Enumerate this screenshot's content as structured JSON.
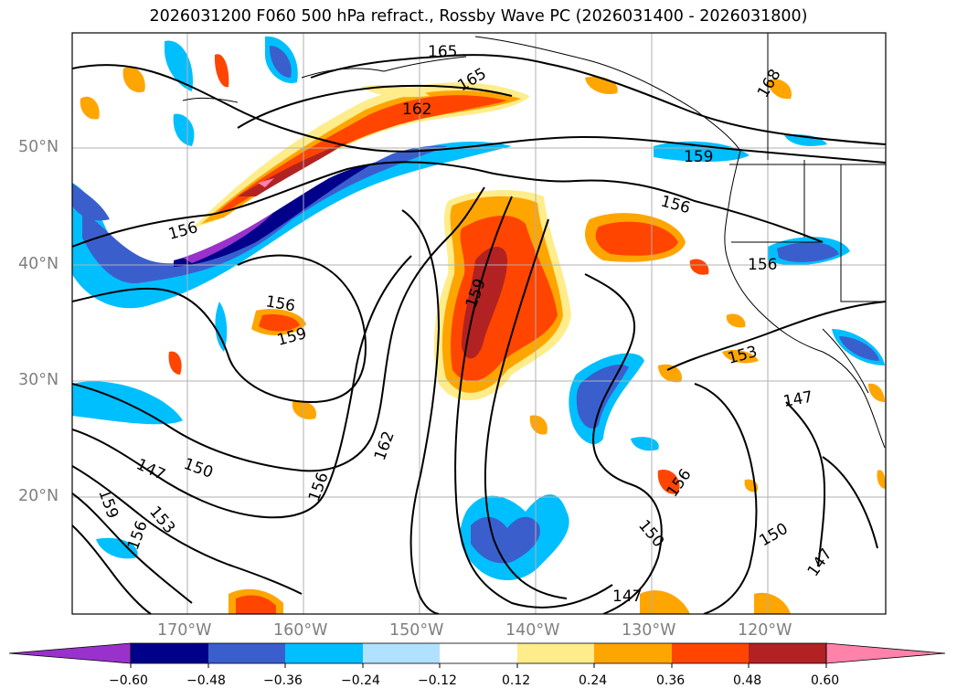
{
  "title": "2026031200 F060 500 hPa refract., Rossby Wave PC (2026031400 - 2026031800)",
  "lat_labels": [
    "50°N",
    "40°N",
    "30°N",
    "20°N"
  ],
  "lon_labels": [
    "170°W",
    "160°W",
    "150°W",
    "140°W",
    "130°W",
    "120°W"
  ],
  "colorbar": {
    "ticks": [
      "−0.60",
      "−0.48",
      "−0.36",
      "−0.24",
      "−0.12",
      "0.12",
      "0.24",
      "0.36",
      "0.48",
      "0.60"
    ],
    "colors": [
      "#9932cc",
      "#00008b",
      "#3a5fcd",
      "#00bfff",
      "#b0e2ff",
      "#ffffff",
      "#ffec8b",
      "#ffa500",
      "#ff4500",
      "#b22222",
      "#ff82ab"
    ]
  },
  "contour_labels": [
    "165",
    "165",
    "162",
    "168",
    "159",
    "156",
    "156",
    "156",
    "156",
    "159",
    "159",
    "153",
    "147",
    "162",
    "150",
    "147",
    "153",
    "156",
    "159",
    "156",
    "150",
    "156",
    "150",
    "147",
    "147"
  ],
  "styles": {
    "contour_color": "#000000",
    "grid_color": "#b0b0b0",
    "coast_color": "#000000"
  }
}
